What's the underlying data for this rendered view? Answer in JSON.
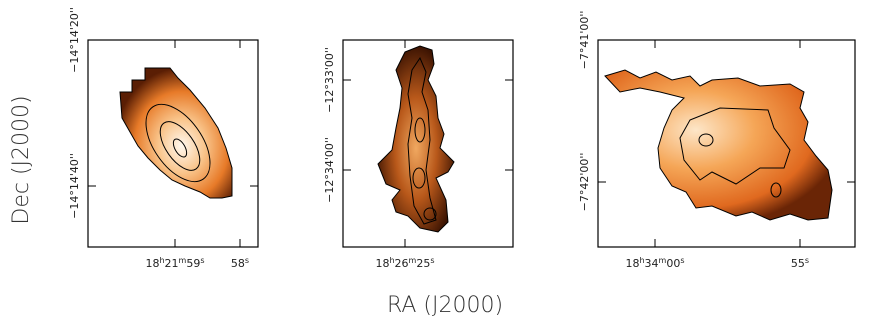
{
  "axes": {
    "x_label": "RA (J2000)",
    "y_label": "Dec (J2000)"
  },
  "panels": [
    {
      "y_ticks": [
        "−14°14'20''",
        "−14°14'40''"
      ],
      "x_ticks": [
        [
          "18",
          "h",
          "21",
          "m",
          "59",
          "s"
        ],
        [
          "58",
          "s"
        ]
      ]
    },
    {
      "y_ticks": [
        "−12°33'00''",
        "−12°34'00''"
      ],
      "x_ticks": [
        [
          "18",
          "h",
          "26",
          "m",
          "25",
          "s"
        ]
      ]
    },
    {
      "y_ticks": [
        "−7°41'00''",
        "−7°42'00''"
      ],
      "x_ticks": [
        [
          "18",
          "h",
          "34",
          "m",
          "00",
          "s"
        ],
        [
          "55",
          "s"
        ]
      ]
    }
  ]
}
